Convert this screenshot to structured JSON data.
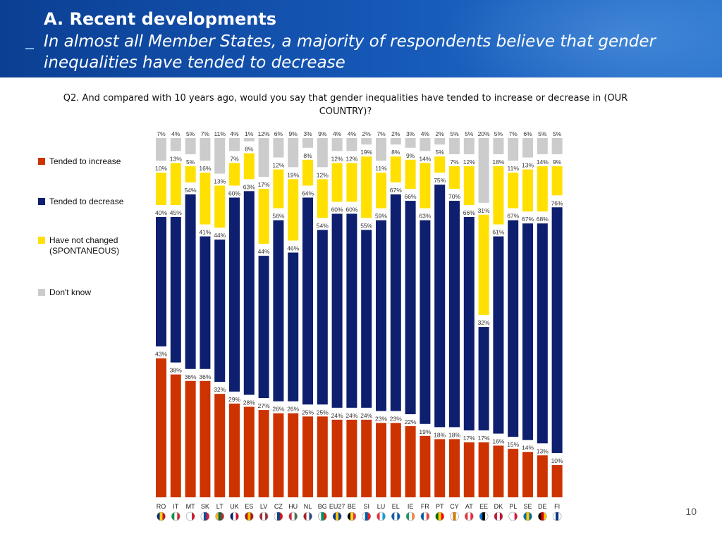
{
  "header": {
    "title": "A. Recent developments",
    "subtitle": "In almost all Member States, a majority of respondents believe that gender inequalities have tended to decrease"
  },
  "question": "Q2. And compared with 10 years ago, would you say that gender inequalities have tended to increase or decrease in (OUR COUNTRY)?",
  "page_number": "10",
  "colors": {
    "increase": "#cc3300",
    "decrease": "#0d1f6e",
    "not_changed": "#ffe000",
    "dont_know": "#cccccc"
  },
  "chart_data": {
    "type": "bar",
    "stacked": true,
    "percent_axis": [
      0,
      100
    ],
    "categories": [
      "RO",
      "IT",
      "MT",
      "SK",
      "LT",
      "UK",
      "ES",
      "LV",
      "CZ",
      "HU",
      "NL",
      "BG",
      "EU27",
      "BE",
      "SI",
      "LU",
      "EL",
      "IE",
      "FR",
      "PT",
      "CY",
      "AT",
      "EE",
      "DK",
      "PL",
      "SE",
      "DE",
      "FI"
    ],
    "series": [
      {
        "name": "Tended to increase",
        "key": "increase",
        "values": [
          43,
          38,
          36,
          36,
          32,
          29,
          28,
          27,
          26,
          26,
          25,
          25,
          24,
          24,
          24,
          23,
          23,
          22,
          19,
          18,
          18,
          17,
          17,
          16,
          15,
          14,
          13,
          10
        ]
      },
      {
        "name": "Tended to decrease",
        "key": "decrease",
        "values": [
          40,
          45,
          54,
          41,
          44,
          60,
          63,
          44,
          56,
          46,
          64,
          54,
          60,
          60,
          55,
          59,
          67,
          66,
          63,
          75,
          70,
          66,
          32,
          61,
          67,
          67,
          68,
          76
        ]
      },
      {
        "name": "Have not changed\n(SPONTANEOUS)",
        "key": "not_changed",
        "values": [
          10,
          13,
          5,
          16,
          13,
          7,
          8,
          17,
          12,
          19,
          8,
          12,
          12,
          12,
          19,
          11,
          8,
          9,
          14,
          5,
          7,
          12,
          31,
          18,
          11,
          13,
          14,
          9
        ]
      },
      {
        "name": "Don't know",
        "key": "dont_know",
        "values": [
          7,
          4,
          5,
          7,
          11,
          4,
          1,
          12,
          6,
          9,
          3,
          9,
          4,
          4,
          2,
          7,
          2,
          3,
          4,
          2,
          5,
          5,
          20,
          5,
          7,
          6,
          5,
          5
        ]
      }
    ],
    "flags": {
      "RO": [
        "#002b7f",
        "#fcd116",
        "#ce1126"
      ],
      "IT": [
        "#009246",
        "#ffffff",
        "#ce2b37"
      ],
      "MT": [
        "#ffffff",
        "#ffffff",
        "#cf142b"
      ],
      "SK": [
        "#ffffff",
        "#0b4ea2",
        "#ee1c25"
      ],
      "LT": [
        "#fdb913",
        "#006a44",
        "#c1272d"
      ],
      "UK": [
        "#012169",
        "#ffffff",
        "#c8102e"
      ],
      "ES": [
        "#aa151b",
        "#f1bf00",
        "#aa151b"
      ],
      "LV": [
        "#9e3039",
        "#ffffff",
        "#9e3039"
      ],
      "CZ": [
        "#ffffff",
        "#11457e",
        "#d7141a"
      ],
      "HU": [
        "#ce2939",
        "#ffffff",
        "#477050"
      ],
      "NL": [
        "#ae1c28",
        "#ffffff",
        "#21468b"
      ],
      "BG": [
        "#ffffff",
        "#00966e",
        "#d62612"
      ],
      "EU27": [
        "#003399",
        "#ffcc00",
        "#003399"
      ],
      "BE": [
        "#000000",
        "#fdda24",
        "#ef3340"
      ],
      "SI": [
        "#ffffff",
        "#005da4",
        "#ed1c24"
      ],
      "LU": [
        "#ed2939",
        "#ffffff",
        "#00a1de"
      ],
      "EL": [
        "#0d5eaf",
        "#ffffff",
        "#0d5eaf"
      ],
      "IE": [
        "#169b62",
        "#ffffff",
        "#ff883e"
      ],
      "FR": [
        "#0055a4",
        "#ffffff",
        "#ef4135"
      ],
      "PT": [
        "#006600",
        "#ffcc00",
        "#ff0000"
      ],
      "CY": [
        "#ffffff",
        "#d57800",
        "#ffffff"
      ],
      "AT": [
        "#ed2939",
        "#ffffff",
        "#ed2939"
      ],
      "EE": [
        "#0072ce",
        "#000000",
        "#ffffff"
      ],
      "DK": [
        "#c8102e",
        "#ffffff",
        "#c8102e"
      ],
      "PL": [
        "#ffffff",
        "#ffffff",
        "#dc143c"
      ],
      "SE": [
        "#006aa7",
        "#fecc00",
        "#006aa7"
      ],
      "DE": [
        "#000000",
        "#dd0000",
        "#ffce00"
      ],
      "FI": [
        "#ffffff",
        "#003580",
        "#ffffff"
      ]
    }
  }
}
